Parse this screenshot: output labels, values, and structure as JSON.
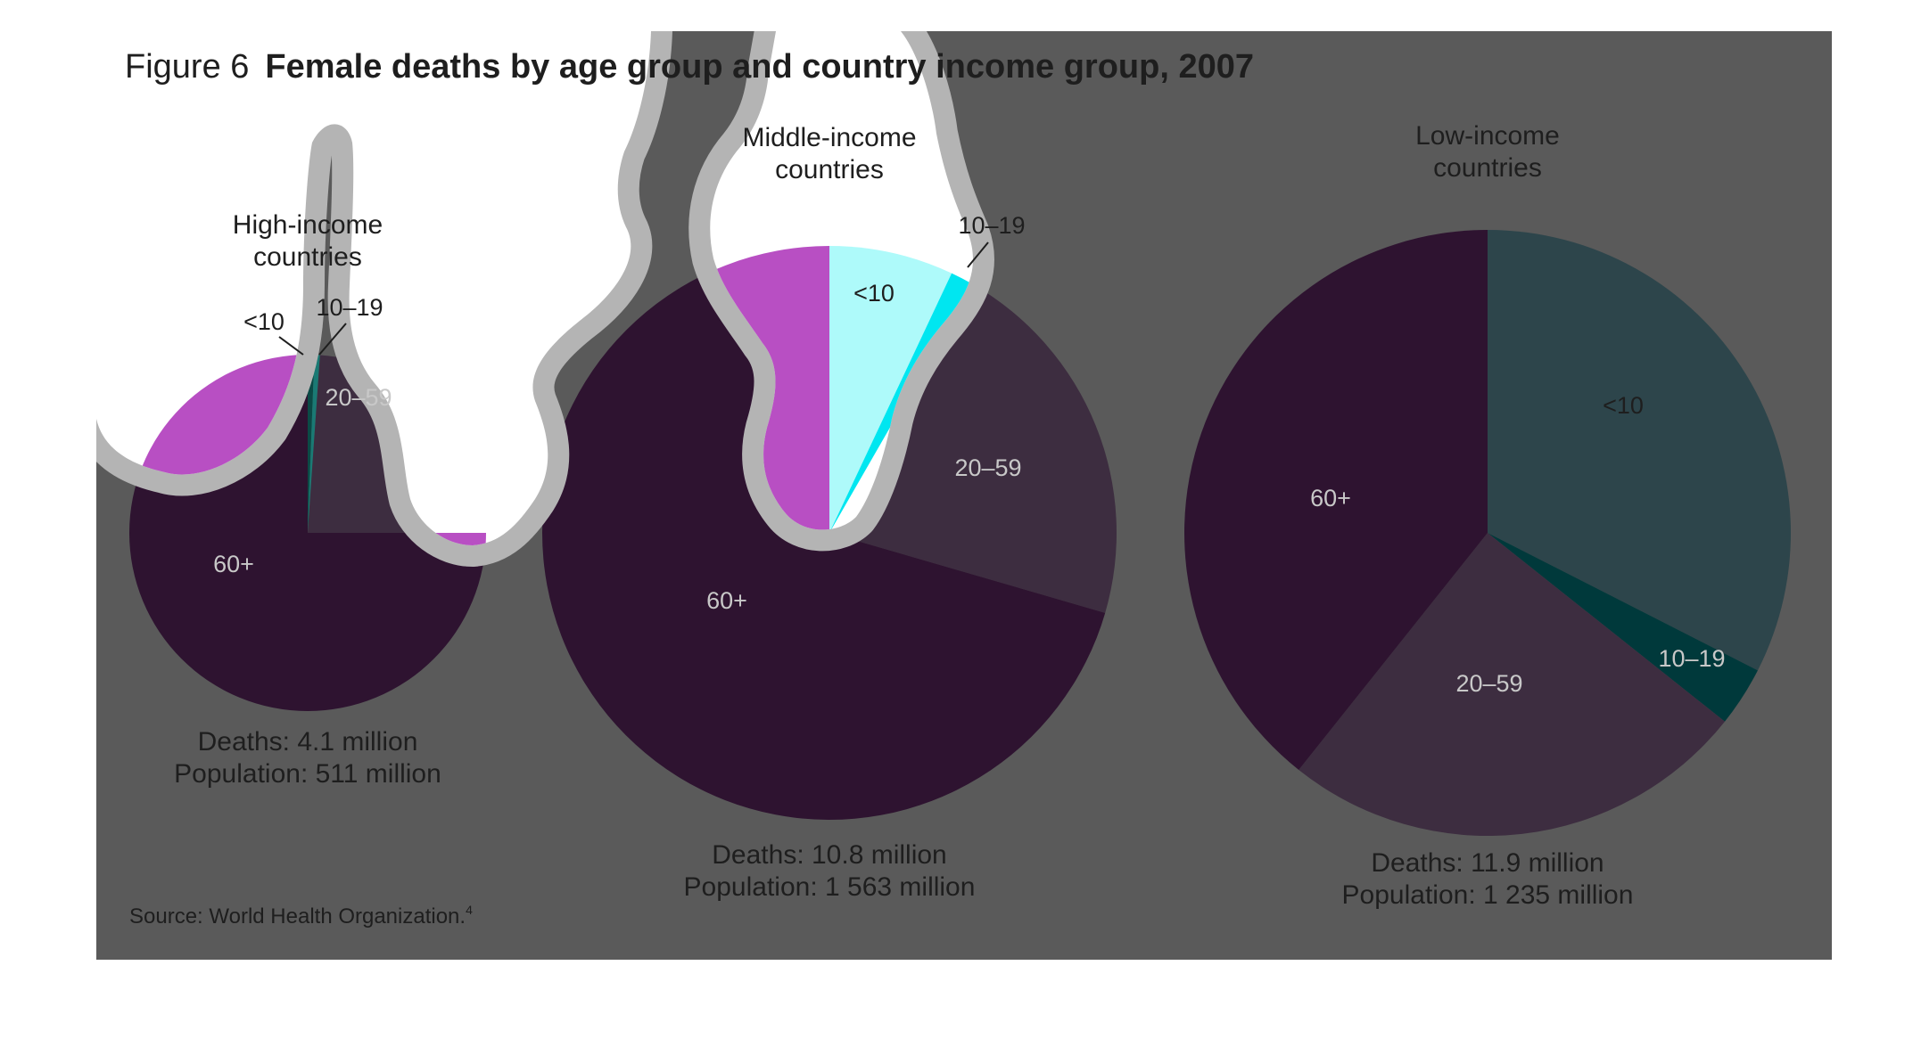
{
  "chart_data": {
    "type": "pie",
    "figure_number": "Figure 6",
    "title": "Female deaths by age group and country income group, 2007",
    "source": "Source: World Health Organization.",
    "source_note": "4",
    "pies": [
      {
        "title_lines": [
          "High-income",
          "countries"
        ],
        "deaths": "Deaths: 4.1 million",
        "population": "Population: 511 million",
        "slices": [
          {
            "label": "<10",
            "value": 0.6,
            "color": "#0b4a46"
          },
          {
            "label": "10–19",
            "value": 0.5,
            "color": "#1a7a74"
          },
          {
            "label": "20–59",
            "value": 23.9,
            "color": "#3d2d40"
          },
          {
            "label": "60+",
            "value": 75.0,
            "color": "#2e1330"
          }
        ]
      },
      {
        "title_lines": [
          "Middle-income",
          "countries"
        ],
        "deaths": "Deaths: 10.8 million",
        "population": "Population: 1 563 million",
        "slices": [
          {
            "label": "<10",
            "value": 7.0,
            "color": "#aefafa"
          },
          {
            "label": "10–19",
            "value": 1.3,
            "color": "#00e6f0"
          },
          {
            "label": "20–59",
            "value": 21.2,
            "color": "#3d2d40"
          },
          {
            "label": "60+",
            "value": 70.5,
            "color": "#2e1330"
          }
        ]
      },
      {
        "title_lines": [
          "Low-income",
          "countries"
        ],
        "deaths": "Deaths: 11.9 million",
        "population": "Population: 1 235 million",
        "slices": [
          {
            "label": "<10",
            "value": 32.5,
            "color": "#2d454b"
          },
          {
            "label": "10–19",
            "value": 3.2,
            "color": "#00393b"
          },
          {
            "label": "20–59",
            "value": 25.0,
            "color": "#3d2d40"
          },
          {
            "label": "60+",
            "value": 39.3,
            "color": "#2e1330"
          }
        ]
      }
    ],
    "colors": {
      "panel_background": "#5a5a5a",
      "highlight_background": "#ffffff",
      "highlight_outline": "#b4b4b4",
      "highlight_pink": "#b84fc3",
      "text_dark": "#1e1e1e",
      "text_light": "#c8c8c8"
    }
  }
}
